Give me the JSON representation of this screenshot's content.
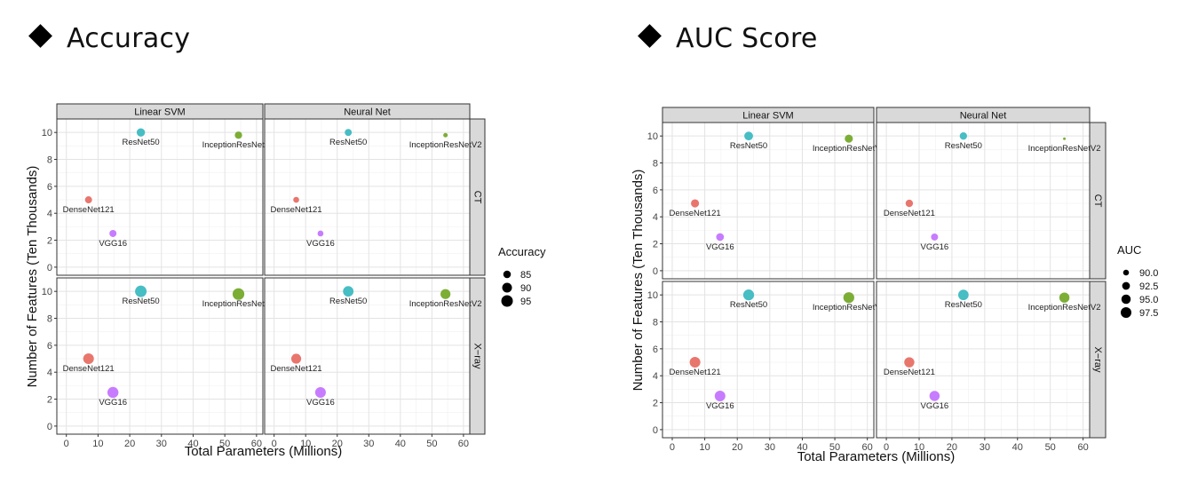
{
  "headings": {
    "left": "Accuracy",
    "right": "AUC Score"
  },
  "chart_data": [
    {
      "type": "scatter",
      "title": "Accuracy",
      "xlabel": "Total Parameters (Millions)",
      "ylabel": "Number of Features (Ten Thousands)",
      "xlim": [
        -3,
        62
      ],
      "ylim": [
        -0.6,
        11
      ],
      "xticks": [
        "0",
        "10",
        "20",
        "30",
        "40",
        "50",
        "60"
      ],
      "yticks": [
        "0",
        "2",
        "4",
        "6",
        "8",
        "10"
      ],
      "column_facets": [
        "Linear SVM",
        "Neural Net"
      ],
      "row_facets": [
        "CT",
        "X−ray"
      ],
      "legend": {
        "title": "Accuracy",
        "values": [
          85,
          90,
          95
        ],
        "labels": [
          "85",
          "90",
          "95"
        ]
      },
      "models": [
        {
          "name": "DenseNet121",
          "params": 7,
          "features": 5,
          "color": "#E8766D"
        },
        {
          "name": "ResNet50",
          "params": 23.5,
          "features": 10,
          "color": "#47BDC4"
        },
        {
          "name": "InceptionResNetV2",
          "params": 54.3,
          "features": 9.8,
          "color": "#7CAE36"
        },
        {
          "name": "VGG16",
          "params": 14.7,
          "features": 2.5,
          "color": "#C77CFF"
        }
      ],
      "values": {
        "CT": {
          "Linear SVM": {
            "DenseNet121": 84,
            "ResNet50": 86.5,
            "InceptionResNetV2": 84.5,
            "VGG16": 84
          },
          "Neural Net": {
            "DenseNet121": 82,
            "ResNet50": 84,
            "InceptionResNetV2": 79,
            "VGG16": 82
          }
        },
        "X−ray": {
          "Linear SVM": {
            "DenseNet121": 92.5,
            "ResNet50": 95,
            "InceptionResNetV2": 95.5,
            "VGG16": 93.5
          },
          "Neural Net": {
            "DenseNet121": 90.5,
            "ResNet50": 92,
            "InceptionResNetV2": 90.5,
            "VGG16": 92.5
          }
        }
      }
    },
    {
      "type": "scatter",
      "title": "AUC Score",
      "xlabel": "Total Parameters (Millions)",
      "ylabel": "Number of Features (Ten Thousands)",
      "xlim": [
        -3,
        62
      ],
      "ylim": [
        -0.6,
        11
      ],
      "xticks": [
        "0",
        "10",
        "20",
        "30",
        "40",
        "50",
        "60"
      ],
      "yticks": [
        "0",
        "2",
        "4",
        "6",
        "8",
        "10"
      ],
      "column_facets": [
        "Linear SVM",
        "Neural Net"
      ],
      "row_facets": [
        "CT",
        "X−ray"
      ],
      "legend": {
        "title": "AUC",
        "values": [
          90,
          92.5,
          95,
          97.5
        ],
        "labels": [
          "90.0",
          "92.5",
          "95.0",
          "97.5"
        ]
      },
      "models": [
        {
          "name": "DenseNet121",
          "params": 7,
          "features": 5,
          "color": "#E8766D"
        },
        {
          "name": "ResNet50",
          "params": 23.5,
          "features": 10,
          "color": "#47BDC4"
        },
        {
          "name": "InceptionResNetV2",
          "params": 54.3,
          "features": 9.8,
          "color": "#7CAE36"
        },
        {
          "name": "VGG16",
          "params": 14.7,
          "features": 2.5,
          "color": "#C77CFF"
        }
      ],
      "values": {
        "CT": {
          "Linear SVM": {
            "DenseNet121": 93,
            "ResNet50": 94,
            "InceptionResNetV2": 93,
            "VGG16": 92.5
          },
          "Neural Net": {
            "DenseNet121": 92,
            "ResNet50": 92,
            "InceptionResNetV2": 87.5,
            "VGG16": 91.5
          }
        },
        "X−ray": {
          "Linear SVM": {
            "DenseNet121": 97.5,
            "ResNet50": 98,
            "InceptionResNetV2": 98,
            "VGG16": 97.5
          },
          "Neural Net": {
            "DenseNet121": 96.5,
            "ResNet50": 97,
            "InceptionResNetV2": 96.5,
            "VGG16": 96.5
          }
        }
      }
    }
  ]
}
